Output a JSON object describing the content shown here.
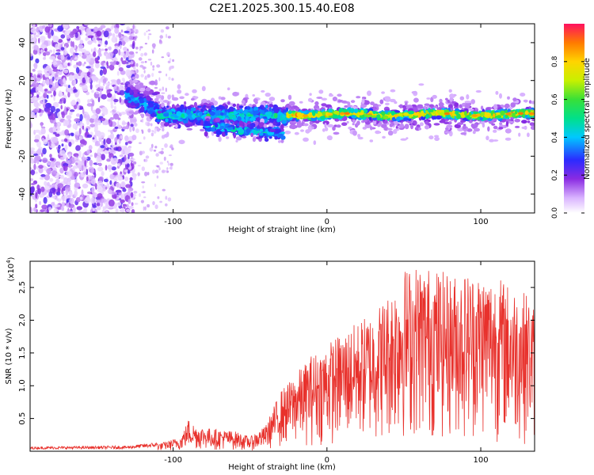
{
  "title": "C2E1.2025.300.15.40.E08",
  "chart_data": [
    {
      "type": "heatmap",
      "name": "spectrogram",
      "xlabel": "Height of straight line (km)",
      "ylabel": "Frequency (Hz)",
      "xlim": [
        -193,
        135
      ],
      "ylim": [
        -50,
        50
      ],
      "xticks": [
        -100,
        0,
        100
      ],
      "xtick_labels": [
        "-100",
        "0",
        "100"
      ],
      "yticks": [
        -40,
        -20,
        0,
        20,
        40
      ],
      "ytick_labels": [
        "-40",
        "-20",
        "0",
        "20",
        "40"
      ],
      "colorbar": {
        "label": "Normalized spectral amplitude",
        "range": [
          0,
          1
        ],
        "ticks": [
          0.0,
          0.2,
          0.4,
          0.6,
          0.8
        ],
        "tick_labels": [
          "0.0",
          "0.2",
          "0.4",
          "0.6",
          "0.8"
        ]
      },
      "regions": [
        {
          "description": "noise",
          "x_range": [
            -193,
            -125
          ],
          "freq_range": [
            -50,
            50
          ],
          "amplitude": 0.15
        },
        {
          "description": "signal onset",
          "x_range": [
            -130,
            -110
          ],
          "freq_center": 12,
          "freq_width": 10,
          "amplitude": 0.35
        },
        {
          "description": "broadened signal",
          "x_range": [
            -110,
            -25
          ],
          "freq_center": 0,
          "freq_width": 14,
          "amplitude": 0.35
        },
        {
          "description": "narrow signal",
          "x_range": [
            -25,
            135
          ],
          "freq_center": 2,
          "freq_width": 4,
          "amplitude": 0.75
        }
      ]
    },
    {
      "type": "line",
      "name": "snr",
      "xlabel": "Height of straight line (km)",
      "ylabel": "SNR (10 * v/v)",
      "y_scale_label": "(x10",
      "y_scale_exponent": "4",
      "xlim": [
        -193,
        135
      ],
      "ylim": [
        0,
        2.9
      ],
      "xticks": [
        -100,
        0,
        100
      ],
      "xtick_labels": [
        "-100",
        "0",
        "100"
      ],
      "yticks": [
        0.5,
        1.0,
        1.5,
        2.0,
        2.5
      ],
      "ytick_labels": [
        "0.5",
        "1.0",
        "1.5",
        "2.0",
        "2.5"
      ],
      "color": "#e8312c",
      "series": [
        {
          "name": "SNR envelope",
          "x": [
            -193,
            -130,
            -110,
            -95,
            -90,
            -85,
            -70,
            -60,
            -50,
            -40,
            -35,
            -30,
            -25,
            -20,
            -15,
            -10,
            -5,
            0,
            10,
            20,
            30,
            40,
            50,
            60,
            70,
            80,
            90,
            100,
            110,
            120,
            130,
            135
          ],
          "values": [
            0.05,
            0.06,
            0.1,
            0.2,
            0.45,
            0.35,
            0.3,
            0.28,
            0.2,
            0.35,
            0.6,
            0.85,
            0.95,
            1.1,
            1.2,
            1.35,
            1.4,
            1.5,
            1.65,
            1.8,
            1.95,
            2.2,
            2.55,
            2.6,
            2.55,
            2.45,
            2.5,
            2.5,
            2.45,
            2.3,
            2.2,
            2.0
          ]
        }
      ]
    }
  ]
}
